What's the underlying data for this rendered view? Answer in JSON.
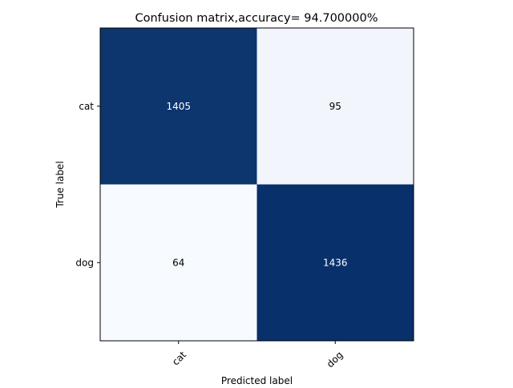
{
  "chart_data": {
    "type": "heatmap",
    "title": "Confusion matrix,accuracy= 94.700000%",
    "xlabel": "Predicted label",
    "ylabel": "True label",
    "x_categories": [
      "cat",
      "dog"
    ],
    "y_categories": [
      "cat",
      "dog"
    ],
    "values": [
      [
        1405,
        95
      ],
      [
        64,
        1436
      ]
    ],
    "colormap": "Blues",
    "colors": {
      "high": "#08306b",
      "low": "#f7fbff",
      "near_low": "#f1f7fd",
      "text_on_dark": "#ffffff",
      "text_on_light": "#000000"
    },
    "grid": false,
    "legend": "none"
  }
}
